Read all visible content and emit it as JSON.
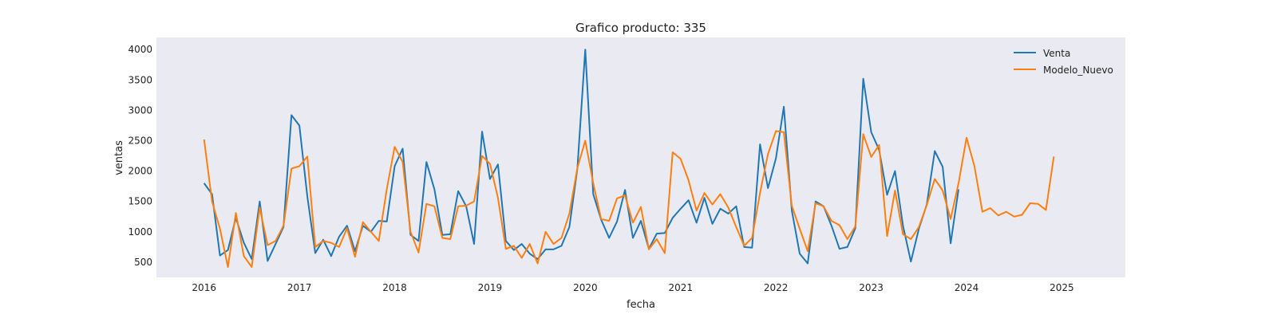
{
  "chart_data": {
    "type": "line",
    "title": "Grafico producto: 335",
    "xlabel": "fecha",
    "ylabel": "ventas",
    "xlim": [
      "2015-07-01",
      "2025-09-01"
    ],
    "ylim": [
      250,
      4200
    ],
    "xticks": [
      "2016",
      "2017",
      "2018",
      "2019",
      "2020",
      "2021",
      "2022",
      "2023",
      "2024",
      "2025"
    ],
    "yticks": [
      500,
      1000,
      1500,
      2000,
      2500,
      3000,
      3500,
      4000
    ],
    "grid": false,
    "legend": "top-right",
    "background": "#eaeaf2",
    "series": [
      {
        "name": "Venta",
        "color": "#1f77b4",
        "start": "2016-01",
        "values": [
          1800,
          1620,
          610,
          700,
          1230,
          820,
          550,
          1500,
          520,
          800,
          1080,
          2920,
          2750,
          1580,
          650,
          870,
          600,
          920,
          1100,
          680,
          1100,
          1000,
          1180,
          1170,
          2080,
          2370,
          950,
          850,
          2150,
          1700,
          950,
          960,
          1670,
          1420,
          800,
          2650,
          1870,
          2110,
          850,
          700,
          800,
          640,
          550,
          710,
          710,
          770,
          1080,
          2040,
          4000,
          1620,
          1200,
          900,
          1170,
          1690,
          900,
          1180,
          720,
          970,
          980,
          1230,
          1380,
          1520,
          1150,
          1560,
          1130,
          1380,
          1300,
          1420,
          750,
          740,
          2440,
          1720,
          2210,
          3060,
          1350,
          640,
          480,
          1500,
          1420,
          1100,
          720,
          750,
          1060,
          3520,
          2640,
          2350,
          1610,
          2000,
          1100,
          510,
          1050,
          1450,
          2330,
          2070,
          810,
          1700
        ]
      },
      {
        "name": "Modelo_Nuevo",
        "color": "#ff7f0e",
        "start": "2016-01",
        "values": [
          2520,
          1500,
          1050,
          420,
          1310,
          600,
          420,
          1400,
          780,
          850,
          1100,
          2040,
          2080,
          2240,
          750,
          850,
          820,
          750,
          1060,
          590,
          1160,
          1000,
          850,
          1700,
          2400,
          2150,
          1000,
          660,
          1460,
          1420,
          900,
          880,
          1420,
          1430,
          1500,
          2250,
          2120,
          1560,
          720,
          770,
          570,
          800,
          480,
          1000,
          800,
          900,
          1300,
          2050,
          2500,
          1800,
          1210,
          1180,
          1550,
          1600,
          1150,
          1410,
          710,
          880,
          650,
          2310,
          2200,
          1850,
          1350,
          1640,
          1450,
          1620,
          1400,
          1080,
          770,
          900,
          1640,
          2280,
          2660,
          2640,
          1430,
          1050,
          680,
          1470,
          1420,
          1180,
          1110,
          880,
          1090,
          2610,
          2230,
          2430,
          930,
          1680,
          960,
          880,
          1080,
          1440,
          1870,
          1680,
          1210,
          1800,
          2550,
          2080,
          1330,
          1390,
          1270,
          1330,
          1250,
          1280,
          1470,
          1460,
          1360,
          2240
        ]
      }
    ]
  }
}
